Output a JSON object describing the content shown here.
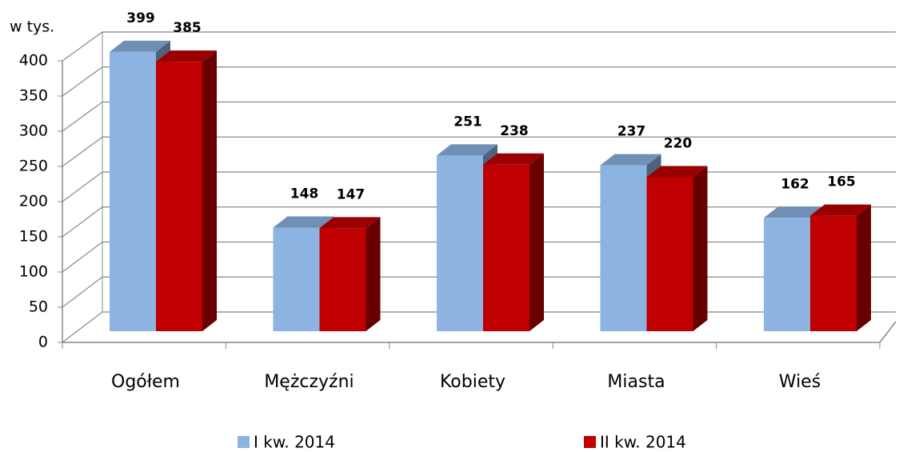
{
  "chart_data": {
    "type": "bar3d",
    "y_axis_label": "w tys.",
    "categories": [
      "Ogółem",
      "Mężczyźni",
      "Kobiety",
      "Miasta",
      "Wieś"
    ],
    "series": [
      {
        "name": "I kw. 2014",
        "color": "#8db3e2",
        "values": [
          399,
          148,
          251,
          237,
          162
        ]
      },
      {
        "name": "II kw. 2014",
        "color": "#c00000",
        "values": [
          385,
          147,
          238,
          220,
          165
        ]
      }
    ],
    "ylim": [
      0,
      400
    ],
    "yticks": [
      0,
      50,
      100,
      150,
      200,
      250,
      300,
      350,
      400
    ],
    "grid": true,
    "legend": "bottom"
  }
}
